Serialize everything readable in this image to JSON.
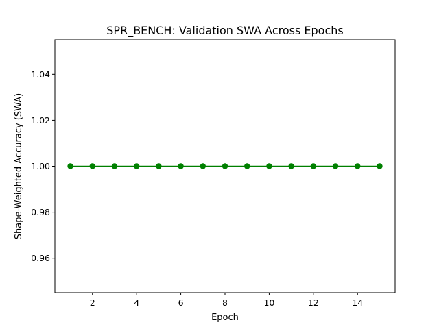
{
  "chart_data": {
    "type": "line",
    "title": "SPR_BENCH: Validation SWA Across Epochs",
    "xlabel": "Epoch",
    "ylabel": "Shape-Weighted Accuracy (SWA)",
    "xlim": [
      0.3,
      15.7
    ],
    "ylim": [
      0.945,
      1.055
    ],
    "xticks": [
      2,
      4,
      6,
      8,
      10,
      12,
      14
    ],
    "xtick_labels": [
      "2",
      "4",
      "6",
      "8",
      "10",
      "12",
      "14"
    ],
    "yticks": [
      0.96,
      0.98,
      1.0,
      1.02,
      1.04
    ],
    "ytick_labels": [
      "0.96",
      "0.98",
      "1.00",
      "1.02",
      "1.04"
    ],
    "grid": false,
    "series": [
      {
        "color": "#008000",
        "marker": "circle",
        "x": [
          1,
          2,
          3,
          4,
          5,
          6,
          7,
          8,
          9,
          10,
          11,
          12,
          13,
          14,
          15
        ],
        "y": [
          1.0,
          1.0,
          1.0,
          1.0,
          1.0,
          1.0,
          1.0,
          1.0,
          1.0,
          1.0,
          1.0,
          1.0,
          1.0,
          1.0,
          1.0
        ]
      }
    ]
  }
}
